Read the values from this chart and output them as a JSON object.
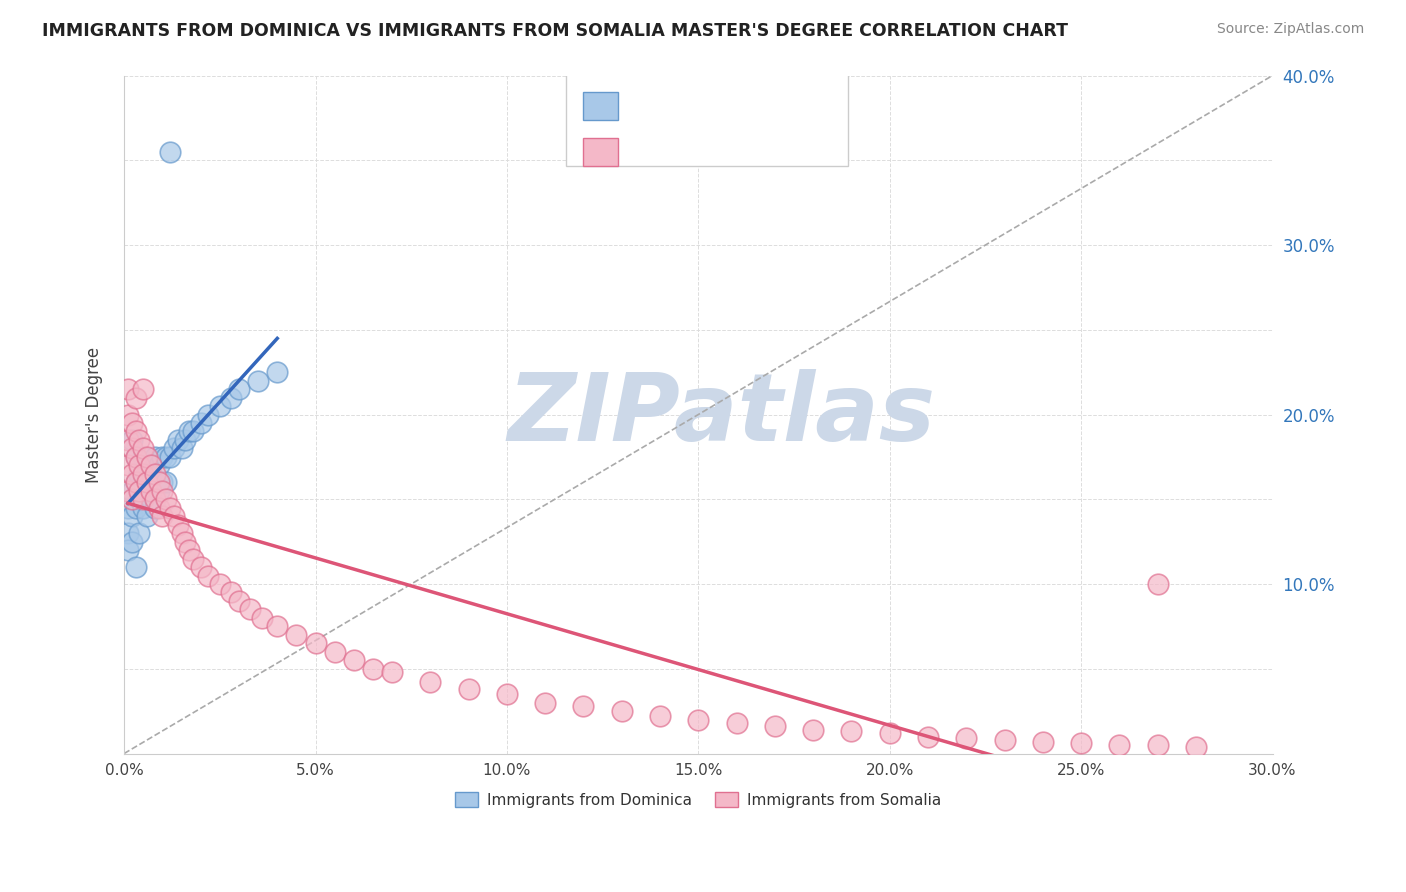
{
  "title": "IMMIGRANTS FROM DOMINICA VS IMMIGRANTS FROM SOMALIA MASTER'S DEGREE CORRELATION CHART",
  "source_text": "Source: ZipAtlas.com",
  "ylabel": "Master's Degree",
  "xlim": [
    0.0,
    0.3
  ],
  "ylim": [
    0.0,
    0.4
  ],
  "xticks": [
    0.0,
    0.05,
    0.1,
    0.15,
    0.2,
    0.25,
    0.3
  ],
  "yticks_right": [
    0.1,
    0.2,
    0.3,
    0.4
  ],
  "dominica_color": "#a8c8e8",
  "dominica_edge": "#6699cc",
  "somalia_color": "#f4b8c8",
  "somalia_edge": "#e07090",
  "reg_dominica_color": "#3366bb",
  "reg_somalia_color": "#dd5577",
  "reg_ref_color": "#aaaaaa",
  "watermark": "ZIPatlas",
  "watermark_color": "#ccd8e8",
  "dominica_label": "Immigrants from Dominica",
  "somalia_label": "Immigrants from Somalia",
  "dominica_x": [
    0.001,
    0.001,
    0.001,
    0.002,
    0.002,
    0.002,
    0.002,
    0.003,
    0.003,
    0.003,
    0.003,
    0.004,
    0.004,
    0.004,
    0.005,
    0.005,
    0.005,
    0.006,
    0.006,
    0.006,
    0.007,
    0.007,
    0.008,
    0.008,
    0.008,
    0.009,
    0.009,
    0.01,
    0.01,
    0.011,
    0.011,
    0.012,
    0.013,
    0.014,
    0.015,
    0.016,
    0.017,
    0.018,
    0.02,
    0.022,
    0.025,
    0.028,
    0.03,
    0.035,
    0.04
  ],
  "dominica_y": [
    0.145,
    0.13,
    0.12,
    0.185,
    0.155,
    0.14,
    0.125,
    0.175,
    0.16,
    0.145,
    0.11,
    0.165,
    0.15,
    0.13,
    0.175,
    0.16,
    0.145,
    0.17,
    0.155,
    0.14,
    0.165,
    0.15,
    0.175,
    0.16,
    0.145,
    0.17,
    0.155,
    0.175,
    0.16,
    0.175,
    0.16,
    0.175,
    0.18,
    0.185,
    0.18,
    0.185,
    0.19,
    0.19,
    0.195,
    0.2,
    0.205,
    0.21,
    0.215,
    0.22,
    0.225
  ],
  "dominica_outlier_x": [
    0.012
  ],
  "dominica_outlier_y": [
    0.355
  ],
  "somalia_x": [
    0.001,
    0.001,
    0.001,
    0.001,
    0.002,
    0.002,
    0.002,
    0.002,
    0.003,
    0.003,
    0.003,
    0.004,
    0.004,
    0.004,
    0.005,
    0.005,
    0.005,
    0.006,
    0.006,
    0.007,
    0.007,
    0.008,
    0.008,
    0.009,
    0.009,
    0.01,
    0.01,
    0.011,
    0.012,
    0.013,
    0.014,
    0.015,
    0.016,
    0.017,
    0.018,
    0.02,
    0.022,
    0.025,
    0.028,
    0.03,
    0.033,
    0.036,
    0.04,
    0.045,
    0.05,
    0.055,
    0.06,
    0.065,
    0.07,
    0.08,
    0.09,
    0.1,
    0.11,
    0.12,
    0.13,
    0.14,
    0.15,
    0.16,
    0.17,
    0.18,
    0.19,
    0.2,
    0.21,
    0.22,
    0.23,
    0.24,
    0.25,
    0.26,
    0.27,
    0.28,
    0.001,
    0.003,
    0.005,
    0.27
  ],
  "somalia_y": [
    0.2,
    0.185,
    0.17,
    0.155,
    0.195,
    0.18,
    0.165,
    0.15,
    0.19,
    0.175,
    0.16,
    0.185,
    0.17,
    0.155,
    0.18,
    0.165,
    0.15,
    0.175,
    0.16,
    0.17,
    0.155,
    0.165,
    0.15,
    0.16,
    0.145,
    0.155,
    0.14,
    0.15,
    0.145,
    0.14,
    0.135,
    0.13,
    0.125,
    0.12,
    0.115,
    0.11,
    0.105,
    0.1,
    0.095,
    0.09,
    0.085,
    0.08,
    0.075,
    0.07,
    0.065,
    0.06,
    0.055,
    0.05,
    0.048,
    0.042,
    0.038,
    0.035,
    0.03,
    0.028,
    0.025,
    0.022,
    0.02,
    0.018,
    0.016,
    0.014,
    0.013,
    0.012,
    0.01,
    0.009,
    0.008,
    0.007,
    0.006,
    0.005,
    0.005,
    0.004,
    0.215,
    0.21,
    0.215,
    0.1
  ]
}
